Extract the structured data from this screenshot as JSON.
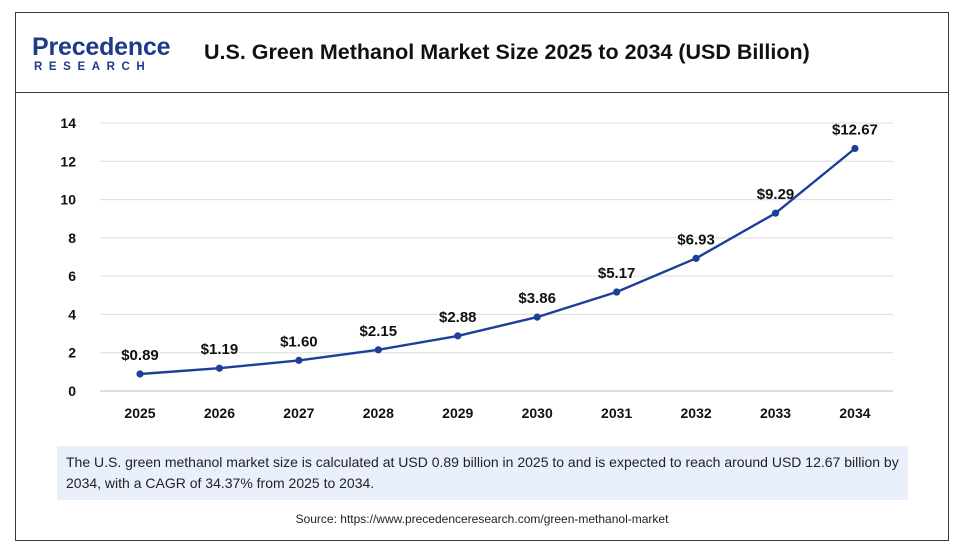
{
  "brand": {
    "logo_word": "Precedence",
    "logo_sub": "RESEARCH"
  },
  "colors": {
    "line": "#1e3f99",
    "grid": "#dcdcdc",
    "panel": "#eaf0fb",
    "brand": "#1e3a8a"
  },
  "chart_data": {
    "type": "line",
    "title": "U.S. Green Methanol Market Size 2025 to 2034 (USD Billion)",
    "xlabel": "",
    "ylabel": "",
    "ylim": [
      0,
      14
    ],
    "yticks": [
      0,
      2,
      4,
      6,
      8,
      10,
      12,
      14
    ],
    "grid": true,
    "categories": [
      "2025",
      "2026",
      "2027",
      "2028",
      "2029",
      "2030",
      "2031",
      "2032",
      "2033",
      "2034"
    ],
    "series": [
      {
        "values": [
          0.89,
          1.19,
          1.6,
          2.15,
          2.88,
          3.86,
          5.17,
          6.93,
          9.29,
          12.67
        ],
        "labels": [
          "$0.89",
          "$1.19",
          "$1.60",
          "$2.15",
          "$2.88",
          "$3.86",
          "$5.17",
          "$6.93",
          "$9.29",
          "$12.67"
        ]
      }
    ]
  },
  "description": "The U.S. green methanol market size is calculated at USD 0.89 billion in 2025 to and is expected to reach around USD 12.67 billion by 2034, with a CAGR of 34.37% from 2025 to 2034.",
  "source": "Source: https://www.precedenceresearch.com/green-methanol-market"
}
